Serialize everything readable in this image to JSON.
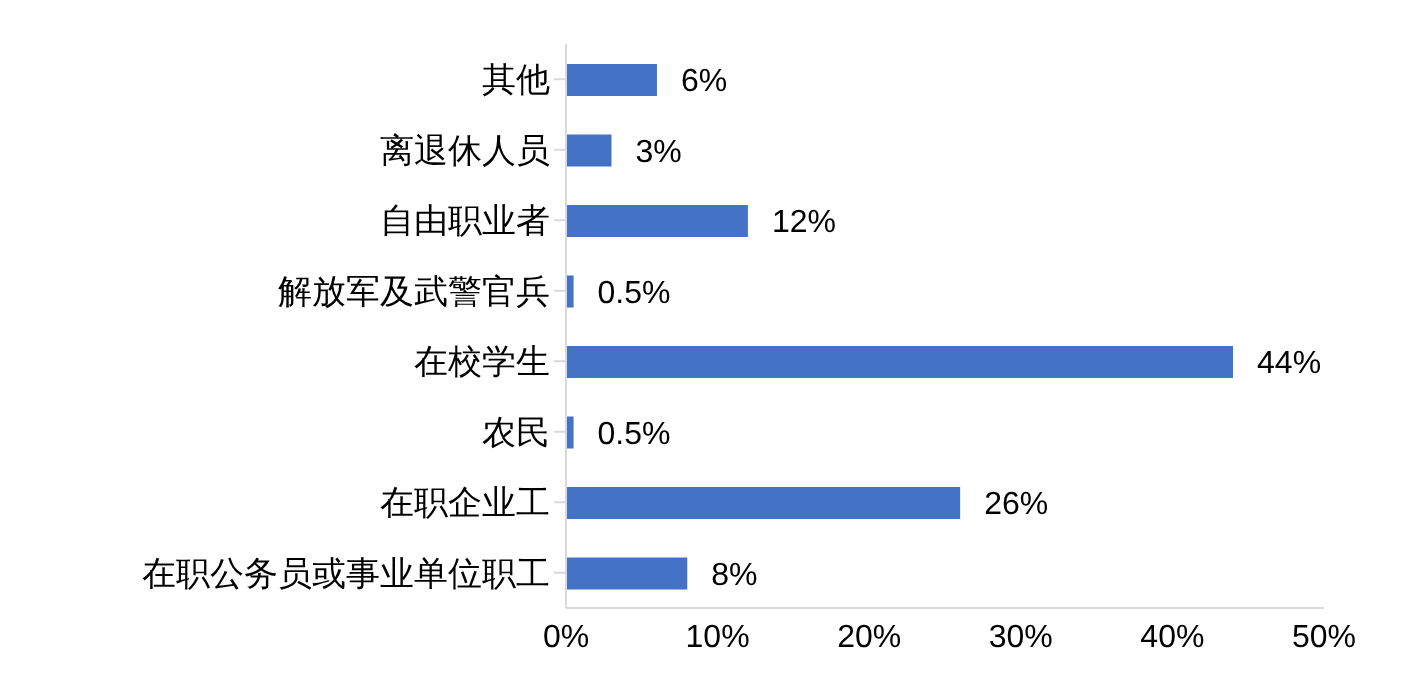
{
  "chart_data": {
    "type": "bar",
    "orientation": "horizontal",
    "categories": [
      "其他",
      "离退休人员",
      "自由职业者",
      "解放军及武警官兵",
      "在校学生",
      "农民",
      "在职企业工",
      "在职公务员或事业单位职工"
    ],
    "values": [
      6,
      3,
      12,
      0.5,
      44,
      0.5,
      26,
      8
    ],
    "value_labels": [
      "6%",
      "3%",
      "12%",
      "0.5%",
      "44%",
      "0.5%",
      "26%",
      "8%"
    ],
    "color": "#4472c4",
    "xlim": [
      0,
      50
    ],
    "xticks": [
      {
        "value": 0,
        "label": "0%"
      },
      {
        "value": 10,
        "label": "10%"
      },
      {
        "value": 20,
        "label": "20%"
      },
      {
        "value": 30,
        "label": "30%"
      },
      {
        "value": 40,
        "label": "40%"
      },
      {
        "value": 50,
        "label": "50%"
      }
    ],
    "grid": false,
    "legend": false
  }
}
